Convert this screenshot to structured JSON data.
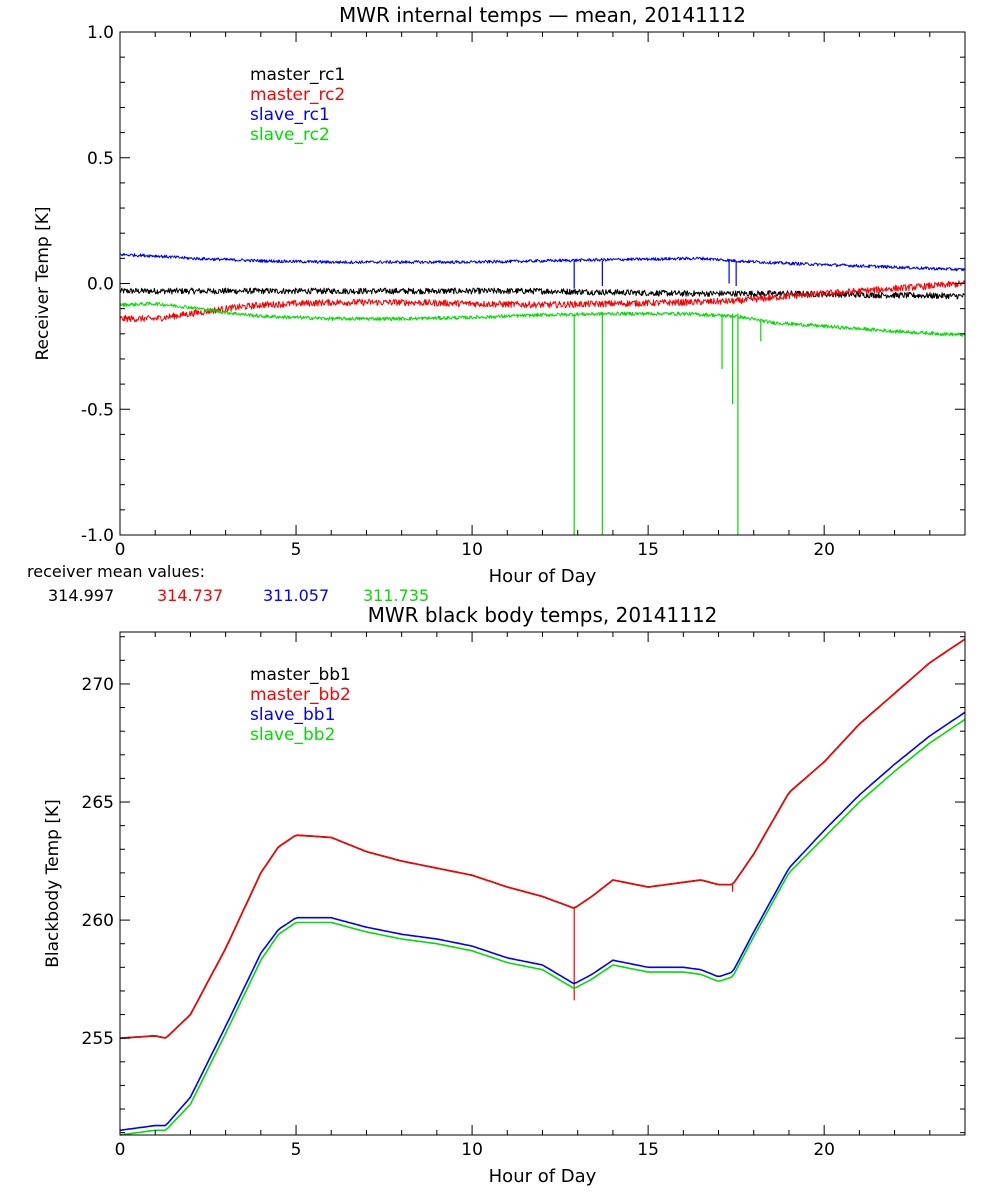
{
  "chart_data": [
    {
      "type": "line",
      "title": "MWR internal temps — mean, 20141112",
      "xlabel": "Hour of Day",
      "ylabel": "Receiver Temp [K]",
      "xlim": [
        0,
        24
      ],
      "ylim": [
        -1.0,
        1.0
      ],
      "xticks": [
        0,
        5,
        10,
        15,
        20
      ],
      "xtick_labels": [
        "0",
        "5",
        "10",
        "15",
        "20"
      ],
      "yticks": [
        -1.0,
        -0.5,
        0.0,
        0.5,
        1.0
      ],
      "ytick_labels": [
        "-1.0",
        "-0.5",
        "0.0",
        "0.5",
        "1.0"
      ],
      "legend_position": "top-left",
      "series": [
        {
          "name": "master_rc1",
          "color": "#000000",
          "noise": 0.012,
          "x": [
            0,
            2,
            4,
            6,
            8,
            10,
            12,
            14,
            16,
            17.5,
            19,
            21,
            24
          ],
          "y": [
            -0.03,
            -0.03,
            -0.03,
            -0.03,
            -0.03,
            -0.03,
            -0.03,
            -0.035,
            -0.04,
            -0.04,
            -0.04,
            -0.045,
            -0.05
          ],
          "spikes": []
        },
        {
          "name": "master_rc2",
          "color": "#ff0000",
          "noise": 0.013,
          "x": [
            0,
            1,
            2,
            3,
            4,
            6,
            8,
            10,
            12,
            14,
            16,
            17.5,
            19,
            21,
            24
          ],
          "y": [
            -0.14,
            -0.14,
            -0.12,
            -0.1,
            -0.085,
            -0.075,
            -0.075,
            -0.08,
            -0.085,
            -0.08,
            -0.075,
            -0.07,
            -0.05,
            -0.03,
            0.0
          ],
          "spikes": []
        },
        {
          "name": "slave_rc1",
          "color": "#0000ff",
          "noise": 0.006,
          "x": [
            0,
            1,
            2,
            4,
            6,
            8,
            10,
            12,
            14,
            16.5,
            17.5,
            19,
            21,
            24
          ],
          "y": [
            0.115,
            0.11,
            0.1,
            0.09,
            0.085,
            0.085,
            0.085,
            0.09,
            0.095,
            0.1,
            0.09,
            0.08,
            0.07,
            0.055
          ],
          "spikes": [
            [
              12.9,
              0.09,
              -0.02
            ],
            [
              13.7,
              0.09,
              -0.01
            ],
            [
              17.3,
              0.09,
              0.0
            ],
            [
              17.5,
              0.09,
              -0.01
            ]
          ]
        },
        {
          "name": "slave_rc2",
          "color": "#00dd00",
          "noise": 0.007,
          "x": [
            0,
            1,
            2,
            3,
            4,
            6,
            8,
            10,
            12,
            14,
            16,
            17.5,
            18.5,
            20,
            22,
            24
          ],
          "y": [
            -0.085,
            -0.08,
            -0.095,
            -0.115,
            -0.13,
            -0.14,
            -0.14,
            -0.135,
            -0.125,
            -0.12,
            -0.12,
            -0.13,
            -0.155,
            -0.17,
            -0.19,
            -0.205
          ],
          "spikes": [
            [
              12.9,
              -0.12,
              -1.0
            ],
            [
              13.7,
              -0.12,
              -1.0
            ],
            [
              17.1,
              -0.12,
              -0.34
            ],
            [
              17.4,
              -0.12,
              -0.48
            ],
            [
              17.55,
              -0.12,
              -1.0
            ],
            [
              18.2,
              -0.14,
              -0.23
            ]
          ]
        }
      ]
    },
    {
      "type": "line",
      "title": "MWR black body temps, 20141112",
      "xlabel": "Hour of Day",
      "ylabel": "Blackbody Temp [K]",
      "xlim": [
        0,
        24
      ],
      "ylim": [
        250.9,
        272.2
      ],
      "xticks": [
        0,
        5,
        10,
        15,
        20
      ],
      "xtick_labels": [
        "0",
        "5",
        "10",
        "15",
        "20"
      ],
      "yticks": [
        255,
        260,
        265,
        270
      ],
      "ytick_labels": [
        "255",
        "260",
        "265",
        "270"
      ],
      "legend_position": "top-left",
      "series": [
        {
          "name": "master_bb1",
          "color": "#000000",
          "noise": 0,
          "x": [
            0,
            0.5,
            1,
            1.3,
            2,
            3,
            4,
            4.5,
            5,
            5.5,
            6,
            7,
            8,
            9,
            10,
            11,
            12,
            12.9,
            13.4,
            14,
            15,
            16,
            16.5,
            17,
            17.4,
            18,
            19,
            20,
            21,
            22,
            23,
            24
          ],
          "y": [
            255.0,
            255.05,
            255.1,
            255.0,
            256.0,
            258.8,
            262.0,
            263.1,
            263.6,
            263.55,
            263.5,
            262.9,
            262.5,
            262.2,
            261.9,
            261.4,
            261.0,
            260.5,
            261.0,
            261.7,
            261.4,
            261.6,
            261.7,
            261.5,
            261.5,
            262.8,
            265.4,
            266.7,
            268.3,
            269.6,
            270.9,
            271.9
          ],
          "spikes": []
        },
        {
          "name": "master_bb2",
          "color": "#ff0000",
          "noise": 0,
          "x": [
            0,
            0.5,
            1,
            1.3,
            2,
            3,
            4,
            4.5,
            5,
            5.5,
            6,
            7,
            8,
            9,
            10,
            11,
            12,
            12.9,
            13.4,
            14,
            15,
            16,
            16.5,
            17,
            17.4,
            18,
            19,
            20,
            21,
            22,
            23,
            24
          ],
          "y": [
            255.0,
            255.05,
            255.1,
            255.0,
            256.0,
            258.8,
            262.0,
            263.1,
            263.6,
            263.55,
            263.5,
            262.9,
            262.5,
            262.2,
            261.9,
            261.4,
            261.0,
            260.5,
            261.0,
            261.7,
            261.4,
            261.6,
            261.7,
            261.5,
            261.5,
            262.8,
            265.4,
            266.7,
            268.3,
            269.6,
            270.9,
            271.9
          ],
          "spikes": [
            [
              12.9,
              260.5,
              256.6
            ],
            [
              17.4,
              261.5,
              261.2
            ]
          ]
        },
        {
          "name": "slave_bb1",
          "color": "#0000ff",
          "noise": 0,
          "x": [
            0,
            0.5,
            1,
            1.3,
            2,
            3,
            4,
            4.5,
            5,
            5.5,
            6,
            7,
            8,
            9,
            10,
            11,
            12,
            12.9,
            13.4,
            14,
            15,
            16,
            16.5,
            17,
            17.4,
            18,
            19,
            20,
            21,
            22,
            23,
            24
          ],
          "y": [
            251.1,
            251.2,
            251.3,
            251.3,
            252.5,
            255.5,
            258.6,
            259.6,
            260.1,
            260.1,
            260.1,
            259.7,
            259.4,
            259.2,
            258.9,
            258.4,
            258.1,
            257.3,
            257.7,
            258.3,
            258.0,
            258.0,
            257.9,
            257.6,
            257.8,
            259.5,
            262.2,
            263.8,
            265.3,
            266.6,
            267.8,
            268.8
          ],
          "spikes": []
        },
        {
          "name": "slave_bb2",
          "color": "#00dd00",
          "noise": 0,
          "x": [
            0,
            0.5,
            1,
            1.3,
            2,
            3,
            4,
            4.5,
            5,
            5.5,
            6,
            7,
            8,
            9,
            10,
            11,
            12,
            12.9,
            13.4,
            14,
            15,
            16,
            16.5,
            17,
            17.4,
            18,
            19,
            20,
            21,
            22,
            23,
            24
          ],
          "y": [
            250.9,
            251.0,
            251.1,
            251.1,
            252.2,
            255.2,
            258.3,
            259.4,
            259.9,
            259.9,
            259.9,
            259.5,
            259.2,
            259.0,
            258.7,
            258.2,
            257.9,
            257.1,
            257.5,
            258.1,
            257.8,
            257.8,
            257.7,
            257.4,
            257.6,
            259.3,
            262.0,
            263.5,
            265.0,
            266.3,
            267.5,
            268.5
          ],
          "spikes": []
        }
      ]
    }
  ],
  "receiver_means": {
    "label": "receiver mean values:",
    "values": [
      {
        "text": "314.997",
        "color": "#000000"
      },
      {
        "text": "314.737",
        "color": "#ff0000"
      },
      {
        "text": "311.057",
        "color": "#0000ff"
      },
      {
        "text": "311.735",
        "color": "#00dd00"
      }
    ]
  }
}
